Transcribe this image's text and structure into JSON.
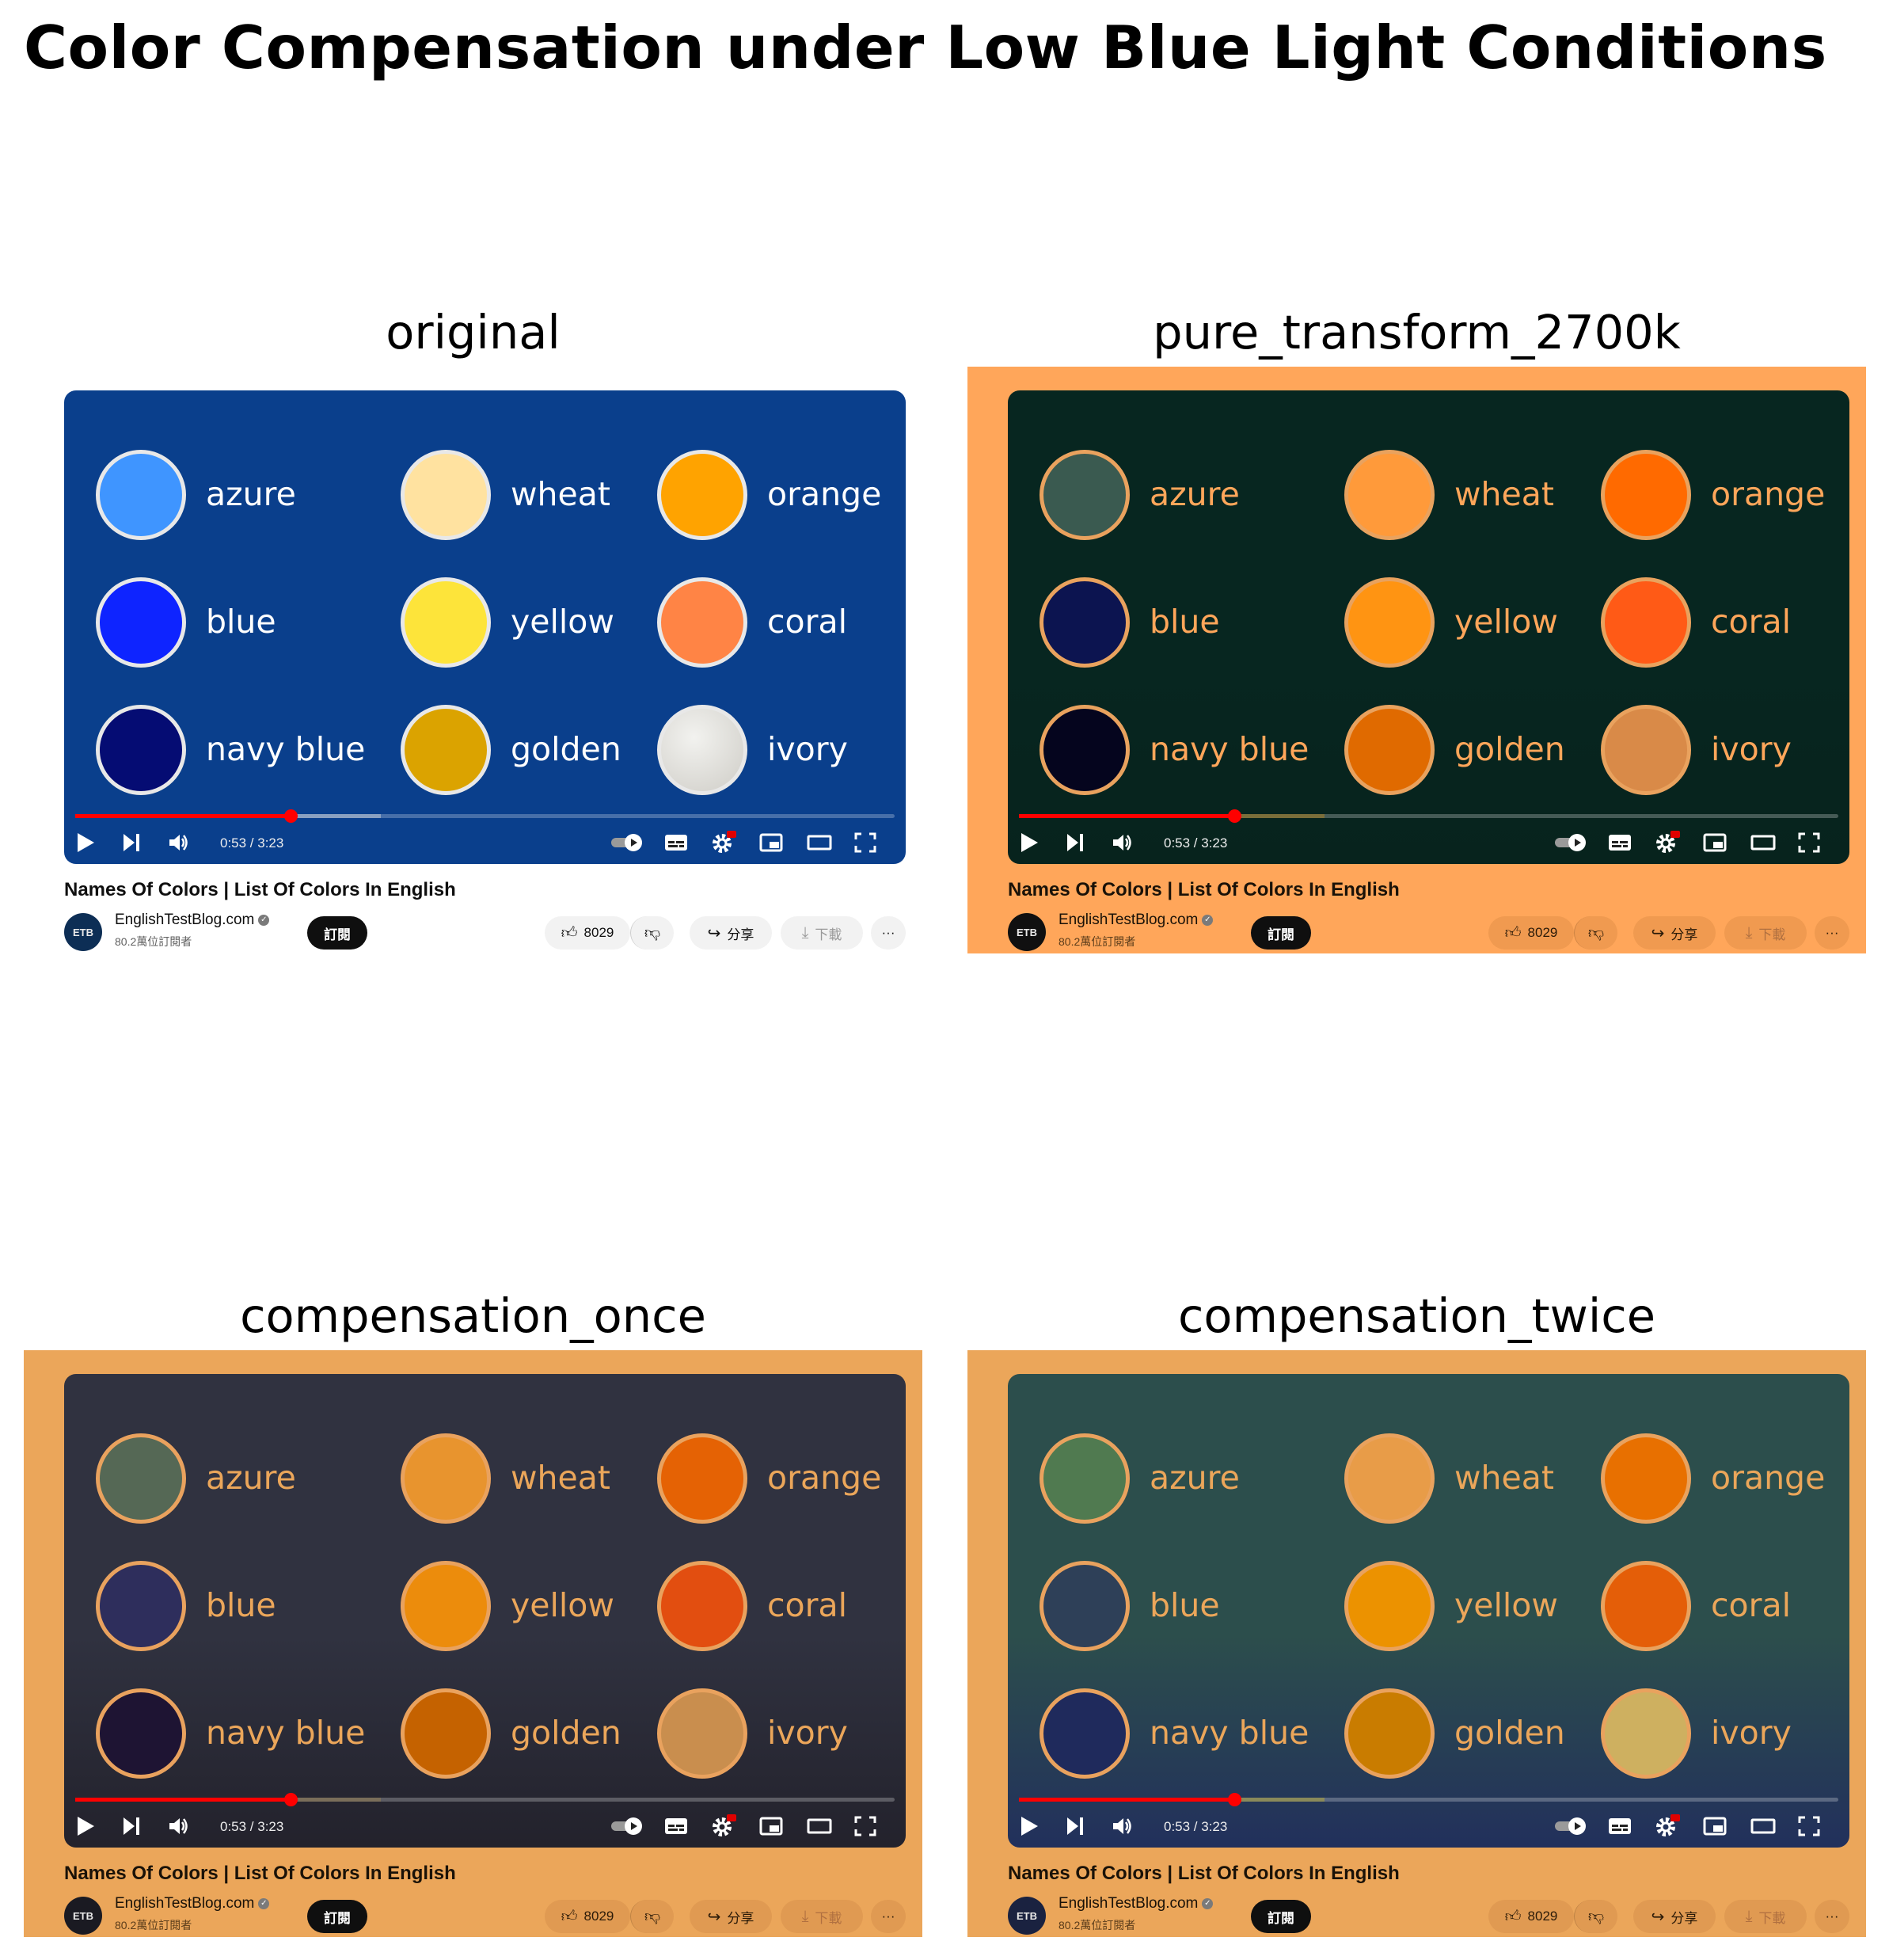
{
  "figure": {
    "title": "Color Compensation under Low Blue Light Conditions"
  },
  "video": {
    "title": "Names Of Colors | List Of Colors In English",
    "channel": "EnglishTestBlog.com",
    "subscribers": "80.2萬位訂閱者",
    "subscribe_label": "訂閱",
    "likes": "8029",
    "share_label": "分享",
    "download_label": "下載",
    "more_label": "···",
    "time": "0:53 / 3:23",
    "avatar_text": "ETB",
    "colors": [
      "azure",
      "wheat",
      "orange",
      "blue",
      "yellow",
      "coral",
      "navy blue",
      "golden",
      "ivory"
    ]
  },
  "panels": [
    {
      "title": "original",
      "frame": "#ffffff",
      "bg_top": "#0a3f8c",
      "bg_bottom": "#0a3f8c",
      "text": "#ffffff",
      "ring": "#e8e8e8",
      "page_text": "#0f0f0f",
      "pill_bg": "#f2f2f2",
      "pill_text": "#0f0f0f",
      "avatar_bg": "#0d2e55",
      "buffer": "#8aa0c0",
      "swatches": [
        "#3f95ff",
        "#ffe2a0",
        "#ffa300",
        "#0e24ff",
        "#fde43a",
        "#ff8445",
        "#050c73",
        "#dba300",
        "#e4e3df"
      ]
    },
    {
      "title": "pure_transform_2700k",
      "frame": "#ffa65a",
      "bg_top": "#072620",
      "bg_bottom": "#07231d",
      "text": "#ffa65a",
      "ring": "#e9a25e",
      "page_text": "#1a1208",
      "pill_bg": "#f09a50",
      "pill_text": "#2a1a08",
      "avatar_bg": "#101010",
      "buffer": "#7a6e3a",
      "swatches": [
        "#3a5a50",
        "#ff9a3a",
        "#ff6a00",
        "#0c1450",
        "#ff9412",
        "#ff5a16",
        "#05051e",
        "#e06a00",
        "#d98a48"
      ]
    },
    {
      "title": "compensation_once",
      "frame": "#eba65a",
      "bg_top": "#303240",
      "bg_bottom": "#23222c",
      "text": "#eba65a",
      "ring": "#e9a25e",
      "page_text": "#1a1208",
      "pill_bg": "#e09a52",
      "pill_text": "#2a1a08",
      "avatar_bg": "#1a1a22",
      "buffer": "#7a6e5a",
      "swatches": [
        "#556855",
        "#e8942e",
        "#e56204",
        "#2e2e5c",
        "#ec8c0c",
        "#e24e10",
        "#1e1433",
        "#c56200",
        "#c98e4e"
      ]
    },
    {
      "title": "compensation_twice",
      "frame": "#eba65a",
      "bg_top": "#2c4e4c",
      "bg_bottom": "#22305c",
      "text": "#eba65a",
      "ring": "#e9a25e",
      "page_text": "#1a1208",
      "pill_bg": "#e09a52",
      "pill_text": "#2a1a08",
      "avatar_bg": "#1a2240",
      "buffer": "#8a8a5a",
      "swatches": [
        "#507a50",
        "#e89c48",
        "#e87000",
        "#2e4058",
        "#ec9200",
        "#e45e08",
        "#1f2a5c",
        "#c97c00",
        "#ceb060"
      ]
    }
  ]
}
